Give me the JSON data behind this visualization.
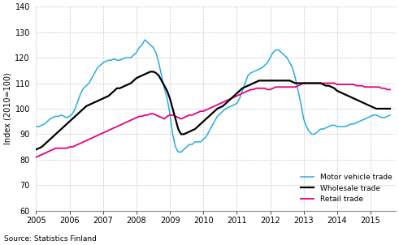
{
  "title": "",
  "ylabel": "Index (2010=100)",
  "source": "Source: Statistics Finland",
  "ylim": [
    60,
    140
  ],
  "yticks": [
    60,
    70,
    80,
    90,
    100,
    110,
    120,
    130,
    140
  ],
  "xlim": [
    2005.0,
    2015.75
  ],
  "xticks": [
    2005,
    2006,
    2007,
    2008,
    2009,
    2010,
    2011,
    2012,
    2013,
    2014,
    2015
  ],
  "motor_vehicle": {
    "color": "#29ABE2",
    "label": "Motor vehicle trade",
    "x": [
      2005.0,
      2005.083,
      2005.167,
      2005.25,
      2005.333,
      2005.417,
      2005.5,
      2005.583,
      2005.667,
      2005.75,
      2005.833,
      2005.917,
      2006.0,
      2006.083,
      2006.167,
      2006.25,
      2006.333,
      2006.417,
      2006.5,
      2006.583,
      2006.667,
      2006.75,
      2006.833,
      2006.917,
      2007.0,
      2007.083,
      2007.167,
      2007.25,
      2007.333,
      2007.417,
      2007.5,
      2007.583,
      2007.667,
      2007.75,
      2007.833,
      2007.917,
      2008.0,
      2008.083,
      2008.167,
      2008.25,
      2008.333,
      2008.417,
      2008.5,
      2008.583,
      2008.667,
      2008.75,
      2008.833,
      2008.917,
      2009.0,
      2009.083,
      2009.167,
      2009.25,
      2009.333,
      2009.417,
      2009.5,
      2009.583,
      2009.667,
      2009.75,
      2009.833,
      2009.917,
      2010.0,
      2010.083,
      2010.167,
      2010.25,
      2010.333,
      2010.417,
      2010.5,
      2010.583,
      2010.667,
      2010.75,
      2010.833,
      2010.917,
      2011.0,
      2011.083,
      2011.167,
      2011.25,
      2011.333,
      2011.417,
      2011.5,
      2011.583,
      2011.667,
      2011.75,
      2011.833,
      2011.917,
      2012.0,
      2012.083,
      2012.167,
      2012.25,
      2012.333,
      2012.417,
      2012.5,
      2012.583,
      2012.667,
      2012.75,
      2012.833,
      2012.917,
      2013.0,
      2013.083,
      2013.167,
      2013.25,
      2013.333,
      2013.417,
      2013.5,
      2013.583,
      2013.667,
      2013.75,
      2013.833,
      2013.917,
      2014.0,
      2014.083,
      2014.167,
      2014.25,
      2014.333,
      2014.417,
      2014.5,
      2014.583,
      2014.667,
      2014.75,
      2014.833,
      2014.917,
      2015.0,
      2015.083,
      2015.167,
      2015.25,
      2015.333,
      2015.417,
      2015.5,
      2015.583
    ],
    "y": [
      93,
      93,
      93.5,
      94,
      95,
      96,
      96.5,
      97,
      97,
      97.5,
      97,
      96.5,
      97,
      98,
      100,
      103,
      106,
      108,
      109,
      110,
      112,
      114,
      116,
      117,
      118,
      118.5,
      119,
      119,
      119.5,
      119,
      119,
      119.5,
      120,
      120,
      120,
      121,
      122,
      124,
      125,
      127,
      126,
      125,
      124,
      122,
      118,
      113,
      108,
      104,
      98,
      90,
      85,
      83,
      83,
      84,
      85,
      86,
      86,
      87,
      87,
      87,
      88,
      89,
      91,
      93,
      95,
      97,
      98,
      99,
      100,
      100.5,
      101,
      101.5,
      102,
      104,
      107,
      110,
      113,
      114,
      114.5,
      115,
      115.5,
      116,
      117,
      118,
      120,
      122,
      123,
      123,
      122,
      121,
      120,
      118,
      116,
      112,
      107,
      102,
      96,
      93,
      91,
      90,
      90,
      91,
      92,
      92,
      92.5,
      93,
      93.5,
      93.5,
      93,
      93,
      93,
      93,
      93.5,
      94,
      94,
      94.5,
      95,
      95.5,
      96,
      96.5,
      97,
      97.5,
      97.5,
      97,
      96.5,
      96.5,
      97,
      97.5
    ]
  },
  "wholesale": {
    "color": "#000000",
    "label": "Wholesale trade",
    "x": [
      2005.0,
      2005.083,
      2005.167,
      2005.25,
      2005.333,
      2005.417,
      2005.5,
      2005.583,
      2005.667,
      2005.75,
      2005.833,
      2005.917,
      2006.0,
      2006.083,
      2006.167,
      2006.25,
      2006.333,
      2006.417,
      2006.5,
      2006.583,
      2006.667,
      2006.75,
      2006.833,
      2006.917,
      2007.0,
      2007.083,
      2007.167,
      2007.25,
      2007.333,
      2007.417,
      2007.5,
      2007.583,
      2007.667,
      2007.75,
      2007.833,
      2007.917,
      2008.0,
      2008.083,
      2008.167,
      2008.25,
      2008.333,
      2008.417,
      2008.5,
      2008.583,
      2008.667,
      2008.75,
      2008.833,
      2008.917,
      2009.0,
      2009.083,
      2009.167,
      2009.25,
      2009.333,
      2009.417,
      2009.5,
      2009.583,
      2009.667,
      2009.75,
      2009.833,
      2009.917,
      2010.0,
      2010.083,
      2010.167,
      2010.25,
      2010.333,
      2010.417,
      2010.5,
      2010.583,
      2010.667,
      2010.75,
      2010.833,
      2010.917,
      2011.0,
      2011.083,
      2011.167,
      2011.25,
      2011.333,
      2011.417,
      2011.5,
      2011.583,
      2011.667,
      2011.75,
      2011.833,
      2011.917,
      2012.0,
      2012.083,
      2012.167,
      2012.25,
      2012.333,
      2012.417,
      2012.5,
      2012.583,
      2012.667,
      2012.75,
      2012.833,
      2012.917,
      2013.0,
      2013.083,
      2013.167,
      2013.25,
      2013.333,
      2013.417,
      2013.5,
      2013.583,
      2013.667,
      2013.75,
      2013.833,
      2013.917,
      2014.0,
      2014.083,
      2014.167,
      2014.25,
      2014.333,
      2014.417,
      2014.5,
      2014.583,
      2014.667,
      2014.75,
      2014.833,
      2014.917,
      2015.0,
      2015.083,
      2015.167,
      2015.25,
      2015.333,
      2015.417,
      2015.5,
      2015.583
    ],
    "y": [
      84,
      84.5,
      85,
      86,
      87,
      88,
      89,
      90,
      91,
      92,
      93,
      94,
      95,
      96,
      97,
      98,
      99,
      100,
      101,
      101.5,
      102,
      102.5,
      103,
      103.5,
      104,
      104.5,
      105,
      106,
      107,
      108,
      108,
      108.5,
      109,
      109.5,
      110,
      111,
      112,
      112.5,
      113,
      113.5,
      114,
      114.5,
      114.5,
      114,
      113,
      111,
      109,
      107,
      104,
      100,
      96,
      92,
      90,
      90,
      90.5,
      91,
      91.5,
      92,
      93,
      94,
      95,
      96,
      97,
      98,
      99,
      100,
      100.5,
      101,
      102,
      103,
      104,
      105,
      106,
      107,
      108,
      108.5,
      109,
      109.5,
      110,
      110.5,
      111,
      111,
      111,
      111,
      111,
      111,
      111,
      111,
      111,
      111,
      111,
      111,
      110.5,
      110,
      110,
      110,
      110,
      110,
      110,
      110,
      110,
      110,
      110,
      109.5,
      109,
      109,
      108.5,
      108,
      107,
      106.5,
      106,
      105.5,
      105,
      104.5,
      104,
      103.5,
      103,
      102.5,
      102,
      101.5,
      101,
      100.5,
      100,
      100,
      100,
      100,
      100,
      100
    ]
  },
  "retail": {
    "color": "#E6007E",
    "label": "Retail trade",
    "x": [
      2005.0,
      2005.083,
      2005.167,
      2005.25,
      2005.333,
      2005.417,
      2005.5,
      2005.583,
      2005.667,
      2005.75,
      2005.833,
      2005.917,
      2006.0,
      2006.083,
      2006.167,
      2006.25,
      2006.333,
      2006.417,
      2006.5,
      2006.583,
      2006.667,
      2006.75,
      2006.833,
      2006.917,
      2007.0,
      2007.083,
      2007.167,
      2007.25,
      2007.333,
      2007.417,
      2007.5,
      2007.583,
      2007.667,
      2007.75,
      2007.833,
      2007.917,
      2008.0,
      2008.083,
      2008.167,
      2008.25,
      2008.333,
      2008.417,
      2008.5,
      2008.583,
      2008.667,
      2008.75,
      2008.833,
      2008.917,
      2009.0,
      2009.083,
      2009.167,
      2009.25,
      2009.333,
      2009.417,
      2009.5,
      2009.583,
      2009.667,
      2009.75,
      2009.833,
      2009.917,
      2010.0,
      2010.083,
      2010.167,
      2010.25,
      2010.333,
      2010.417,
      2010.5,
      2010.583,
      2010.667,
      2010.75,
      2010.833,
      2010.917,
      2011.0,
      2011.083,
      2011.167,
      2011.25,
      2011.333,
      2011.417,
      2011.5,
      2011.583,
      2011.667,
      2011.75,
      2011.833,
      2011.917,
      2012.0,
      2012.083,
      2012.167,
      2012.25,
      2012.333,
      2012.417,
      2012.5,
      2012.583,
      2012.667,
      2012.75,
      2012.833,
      2012.917,
      2013.0,
      2013.083,
      2013.167,
      2013.25,
      2013.333,
      2013.417,
      2013.5,
      2013.583,
      2013.667,
      2013.75,
      2013.833,
      2013.917,
      2014.0,
      2014.083,
      2014.167,
      2014.25,
      2014.333,
      2014.417,
      2014.5,
      2014.583,
      2014.667,
      2014.75,
      2014.833,
      2014.917,
      2015.0,
      2015.083,
      2015.167,
      2015.25,
      2015.333,
      2015.417,
      2015.5,
      2015.583
    ],
    "y": [
      81,
      81.5,
      82,
      82.5,
      83,
      83.5,
      84,
      84.5,
      84.5,
      84.5,
      84.5,
      84.5,
      85,
      85,
      85.5,
      86,
      86.5,
      87,
      87.5,
      88,
      88.5,
      89,
      89.5,
      90,
      90.5,
      91,
      91.5,
      92,
      92.5,
      93,
      93.5,
      94,
      94.5,
      95,
      95.5,
      96,
      96.5,
      97,
      97,
      97.5,
      97.5,
      98,
      98,
      97.5,
      97,
      96.5,
      96,
      97,
      97.5,
      97.5,
      97,
      96.5,
      96,
      96.5,
      97,
      97.5,
      97.5,
      98,
      98.5,
      99,
      99,
      99.5,
      100,
      100.5,
      101,
      101.5,
      102,
      102.5,
      103,
      103.5,
      104,
      104.5,
      105,
      105.5,
      106,
      106.5,
      107,
      107.5,
      107.5,
      108,
      108,
      108,
      108,
      107.5,
      107.5,
      108,
      108.5,
      108.5,
      108.5,
      108.5,
      108.5,
      108.5,
      108.5,
      108.5,
      109,
      109.5,
      110,
      110,
      110,
      110,
      110,
      110,
      110,
      110,
      110,
      110,
      110,
      110,
      109.5,
      109.5,
      109.5,
      109.5,
      109.5,
      109.5,
      109.5,
      109,
      109,
      109,
      108.5,
      108.5,
      108.5,
      108.5,
      108.5,
      108.5,
      108,
      108,
      107.5,
      107.5
    ]
  },
  "bg_color": "#ffffff",
  "grid_color": "#c8c8c8"
}
